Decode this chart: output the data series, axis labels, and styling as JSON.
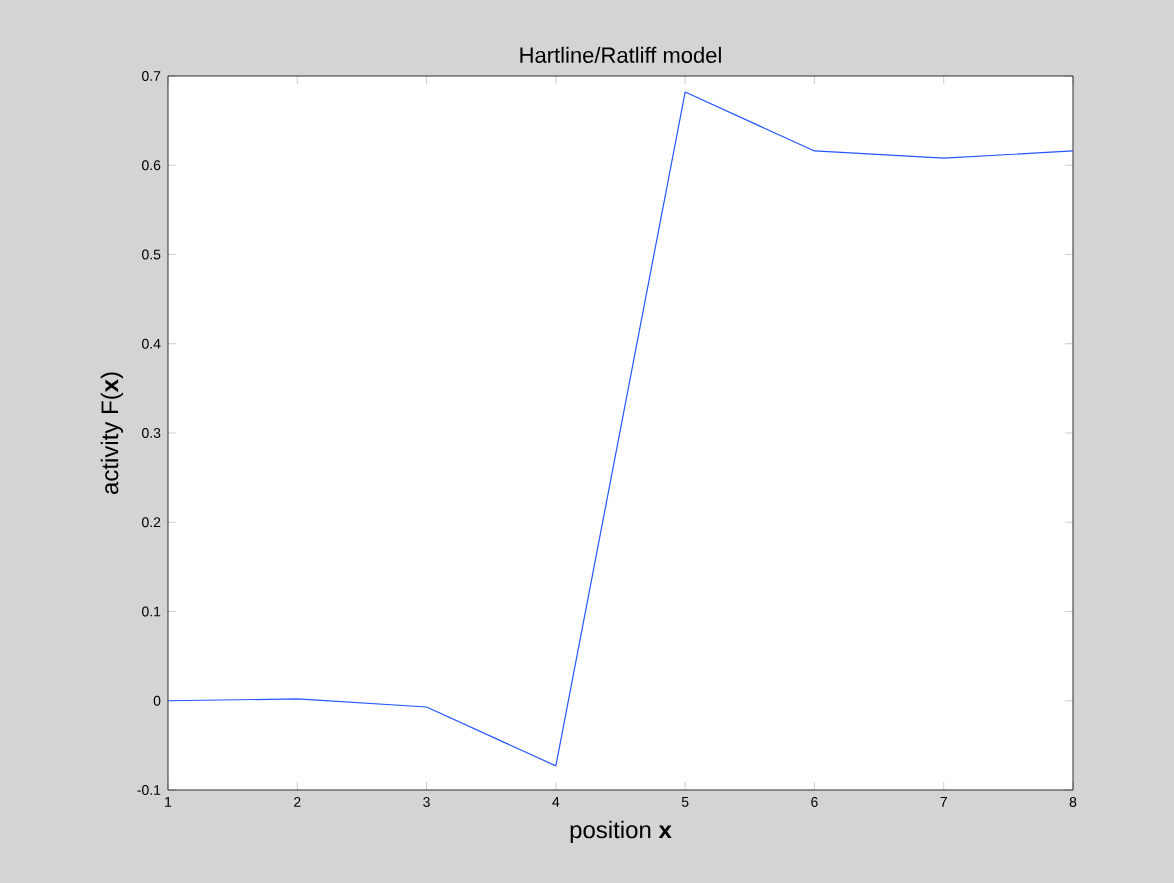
{
  "chart_data": {
    "type": "line",
    "title": "Hartline/Ratliff model",
    "xlabel": "position **x**",
    "ylabel": "activity F(**x**)",
    "x": [
      1,
      2,
      3,
      4,
      5,
      6,
      7,
      8
    ],
    "series": [
      {
        "color": "#2457ff",
        "values": [
          0,
          0.002,
          -0.007,
          -0.073,
          0.682,
          0.616,
          0.608,
          0.616
        ]
      }
    ],
    "xlim": [
      1,
      8
    ],
    "xticks": [
      1,
      2,
      3,
      4,
      5,
      6,
      7,
      8
    ],
    "ylim": [
      -0.1,
      0.7
    ],
    "yticks": [
      -0.1,
      0,
      0.1,
      0.2,
      0.3,
      0.4,
      0.5,
      0.6,
      0.7
    ]
  }
}
